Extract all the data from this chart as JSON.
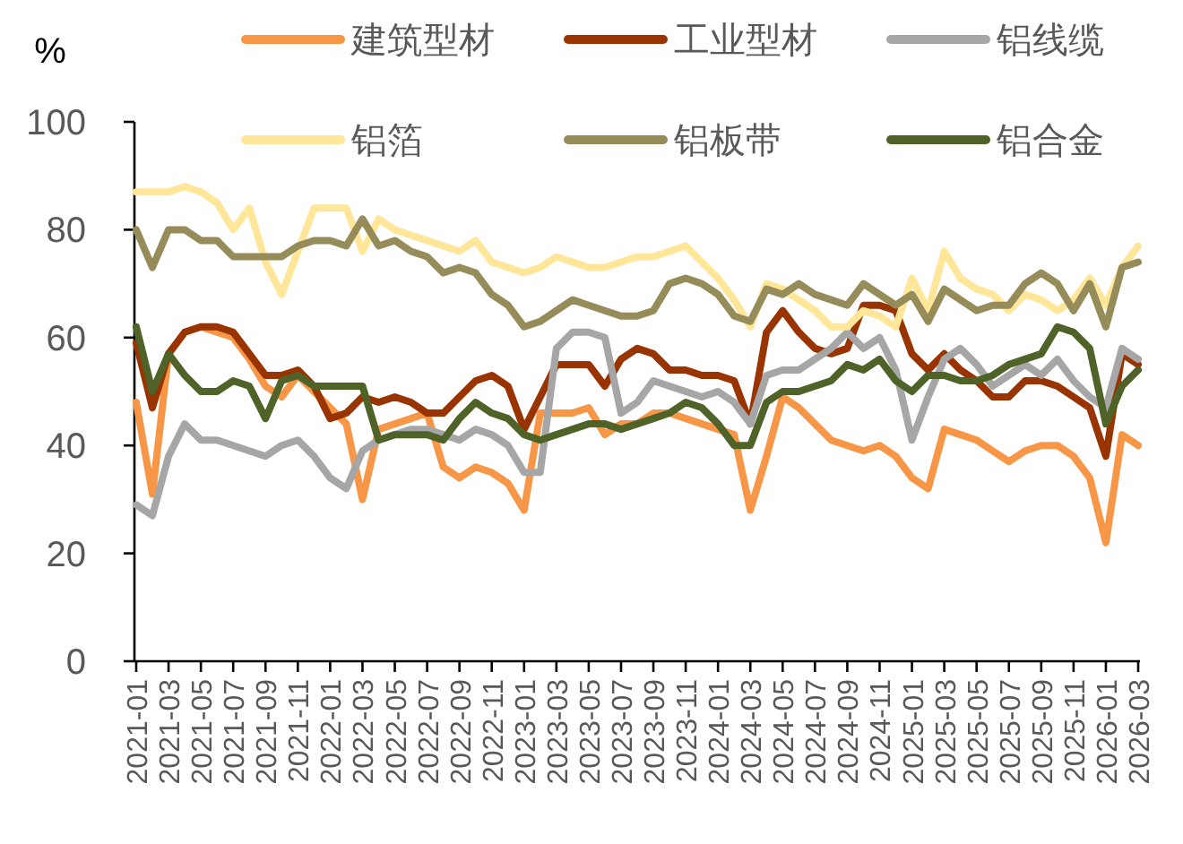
{
  "chart_data": {
    "type": "line",
    "ylabel": "%",
    "ylim": [
      0,
      100
    ],
    "yticks": [
      0,
      20,
      40,
      60,
      80,
      100
    ],
    "legend": "top",
    "categories": [
      "2021-01",
      null,
      "2021-03",
      null,
      "2021-05",
      null,
      "2021-07",
      null,
      "2021-09",
      null,
      "2021-11",
      null,
      "2022-01",
      null,
      "2022-03",
      null,
      "2022-05",
      null,
      "2022-07",
      null,
      "2022-09",
      null,
      "2022-11",
      null,
      "2023-01",
      null,
      "2023-03",
      null,
      "2023-05",
      null,
      "2023-07",
      null,
      "2023-09",
      null,
      "2023-11",
      null,
      "2024-01",
      null,
      "2024-03",
      null,
      "2024-05",
      null,
      "2024-07",
      null,
      "2024-09",
      null,
      "2024-11",
      null,
      "2025-01",
      null,
      "2025-03",
      null,
      "2025-05",
      null,
      "2025-07",
      null,
      "2025-09",
      null,
      "2025-11",
      null,
      "2026-01",
      null,
      "2026-03"
    ],
    "series": [
      {
        "name": "建筑型材",
        "color": "#f79646",
        "values": [
          48,
          31,
          57,
          61,
          62,
          61,
          60,
          56,
          51,
          49,
          53,
          50,
          47,
          44,
          30,
          43,
          44,
          45,
          46,
          36,
          34,
          36,
          35,
          33,
          28,
          46,
          46,
          46,
          47,
          42,
          44,
          44,
          46,
          46,
          45,
          44,
          43,
          42,
          28,
          38,
          49,
          47,
          44,
          41,
          40,
          39,
          40,
          38,
          34,
          32,
          43,
          42,
          41,
          39,
          37,
          39,
          40,
          40,
          38,
          34,
          22,
          42,
          40
        ]
      },
      {
        "name": "工业型材",
        "color": "#993300",
        "values": [
          59,
          47,
          57,
          61,
          62,
          62,
          61,
          57,
          53,
          53,
          54,
          51,
          45,
          46,
          49,
          48,
          49,
          48,
          46,
          46,
          49,
          52,
          53,
          51,
          43,
          49,
          55,
          55,
          55,
          51,
          56,
          58,
          57,
          54,
          54,
          53,
          53,
          52,
          44,
          61,
          65,
          61,
          58,
          57,
          58,
          66,
          66,
          65,
          57,
          54,
          57,
          54,
          52,
          49,
          49,
          52,
          52,
          51,
          49,
          47,
          38,
          57,
          55
        ]
      },
      {
        "name": "铝线缆",
        "color": "#a6a6a6",
        "values": [
          29,
          27,
          38,
          44,
          41,
          41,
          40,
          39,
          38,
          40,
          41,
          38,
          34,
          32,
          39,
          41,
          42,
          43,
          43,
          42,
          41,
          43,
          42,
          40,
          35,
          35,
          58,
          61,
          61,
          60,
          46,
          48,
          52,
          51,
          50,
          49,
          50,
          48,
          44,
          53,
          54,
          54,
          56,
          58,
          61,
          58,
          60,
          54,
          41,
          49,
          56,
          58,
          55,
          51,
          53,
          55,
          53,
          56,
          52,
          49,
          47,
          58,
          56
        ]
      },
      {
        "name": "铝箔",
        "color": "#ffe699",
        "values": [
          87,
          87,
          87,
          88,
          87,
          85,
          80,
          84,
          74,
          68,
          76,
          84,
          84,
          84,
          76,
          82,
          80,
          79,
          78,
          77,
          76,
          78,
          74,
          73,
          72,
          73,
          75,
          74,
          73,
          73,
          74,
          75,
          75,
          76,
          77,
          74,
          71,
          67,
          62,
          70,
          69,
          67,
          65,
          62,
          62,
          65,
          64,
          62,
          71,
          65,
          76,
          71,
          69,
          68,
          65,
          68,
          67,
          65,
          67,
          71,
          66,
          73,
          77
        ]
      },
      {
        "name": "铝板带",
        "color": "#968c5a",
        "values": [
          80,
          73,
          80,
          80,
          78,
          78,
          75,
          75,
          75,
          75,
          77,
          78,
          78,
          77,
          82,
          77,
          78,
          76,
          75,
          72,
          73,
          72,
          68,
          66,
          62,
          63,
          65,
          67,
          66,
          65,
          64,
          64,
          65,
          70,
          71,
          70,
          68,
          64,
          63,
          69,
          68,
          70,
          68,
          67,
          66,
          70,
          68,
          66,
          68,
          63,
          69,
          67,
          65,
          66,
          66,
          70,
          72,
          70,
          65,
          70,
          62,
          73,
          74
        ]
      },
      {
        "name": "铝合金",
        "color": "#4f6228",
        "values": [
          62,
          50,
          57,
          53,
          50,
          50,
          52,
          51,
          45,
          52,
          53,
          51,
          51,
          51,
          51,
          41,
          42,
          42,
          42,
          41,
          45,
          48,
          46,
          45,
          42,
          41,
          42,
          43,
          44,
          44,
          43,
          44,
          45,
          46,
          48,
          47,
          44,
          40,
          40,
          48,
          50,
          50,
          51,
          52,
          55,
          54,
          56,
          52,
          50,
          53,
          53,
          52,
          52,
          53,
          55,
          56,
          57,
          62,
          61,
          58,
          44,
          51,
          54
        ]
      }
    ]
  }
}
